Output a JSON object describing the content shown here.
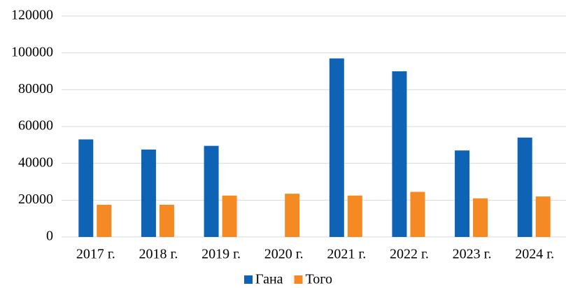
{
  "chart_data": {
    "type": "bar",
    "categories": [
      "2017 г.",
      "2018 г.",
      "2019 г.",
      "2020 г.",
      "2021 г.",
      "2022 г.",
      "2023 г.",
      "2024 г."
    ],
    "series": [
      {
        "name": "Гана",
        "color": "#0f63b4",
        "values": [
          53000,
          47500,
          49500,
          null,
          97000,
          90000,
          47000,
          54000
        ]
      },
      {
        "name": "Того",
        "color": "#f58a24",
        "values": [
          17500,
          17500,
          22500,
          23500,
          22500,
          24500,
          21000,
          22000
        ]
      }
    ],
    "ylim": [
      0,
      120000
    ],
    "yticks": [
      0,
      20000,
      40000,
      60000,
      80000,
      100000,
      120000
    ],
    "grid": true,
    "legend": "bottom"
  }
}
